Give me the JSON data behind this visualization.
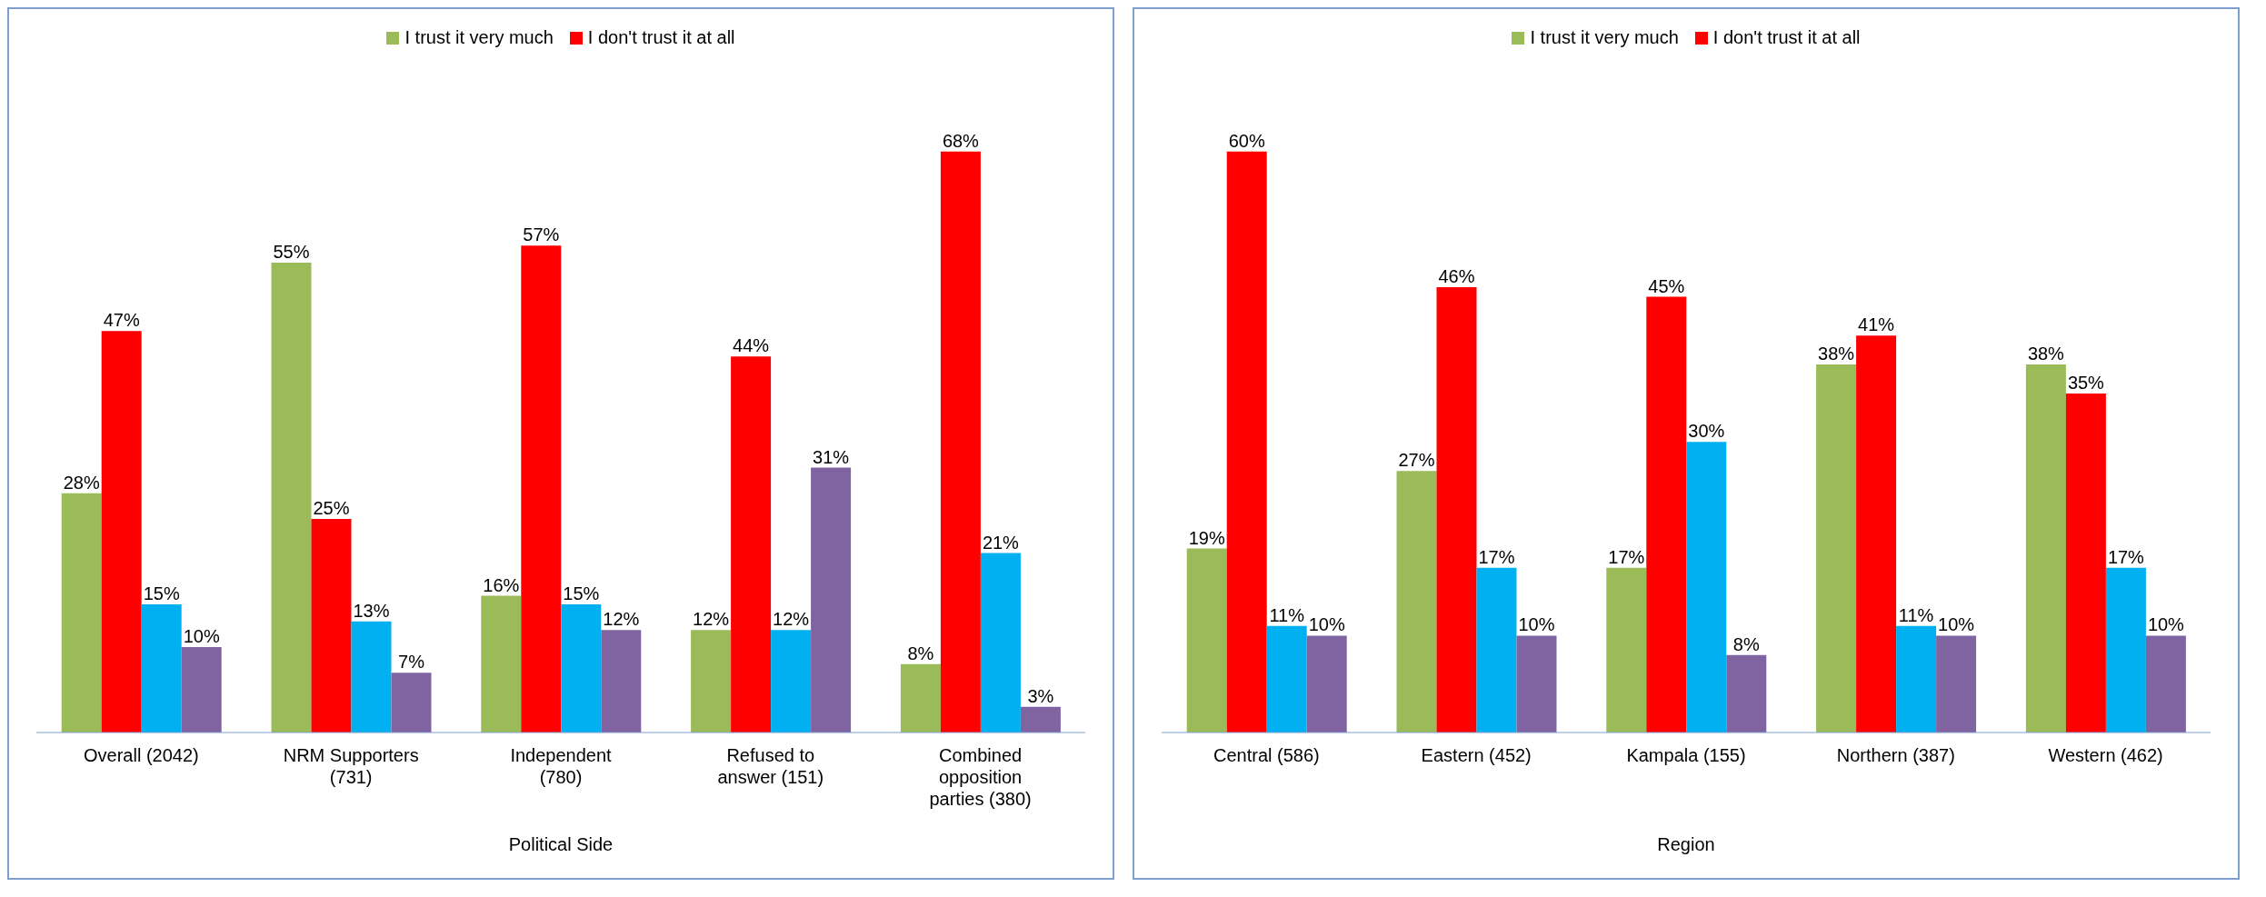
{
  "chart_data": [
    {
      "type": "bar",
      "xlabel": "Political Side",
      "legend": "top",
      "categories": [
        "Overall (2042)",
        "NRM Supporters (731)",
        "Independent (780)",
        "Refused to answer (151)",
        "Combined opposition parties (380)"
      ],
      "series": [
        {
          "name": "I trust it very much",
          "color": "#9bbb59",
          "values": [
            28,
            55,
            16,
            12,
            8
          ],
          "value_labels": [
            "28%",
            "55%",
            "16%",
            "12%",
            "8%"
          ]
        },
        {
          "name": "I don't trust it at all",
          "color": "#ff0000",
          "values": [
            47,
            25,
            57,
            44,
            68
          ],
          "value_labels": [
            "47%",
            "25%",
            "57%",
            "44%",
            "68%"
          ]
        },
        {
          "color": "#00b0f0",
          "values": [
            15,
            13,
            15,
            12,
            21
          ],
          "value_labels": [
            "15%",
            "13%",
            "15%",
            "12%",
            "21%"
          ]
        },
        {
          "color": "#8064a2",
          "values": [
            10,
            7,
            12,
            31,
            3
          ],
          "value_labels": [
            "10%",
            "7%",
            "12%",
            "31%",
            "3%"
          ]
        }
      ]
    },
    {
      "type": "bar",
      "xlabel": "Region",
      "legend": "top",
      "categories": [
        "Central (586)",
        "Eastern (452)",
        "Kampala (155)",
        "Northern (387)",
        "Western (462)"
      ],
      "series": [
        {
          "name": "I trust it very much",
          "color": "#9bbb59",
          "values": [
            19,
            27,
            17,
            38,
            38
          ],
          "value_labels": [
            "19%",
            "27%",
            "17%",
            "38%",
            "38%"
          ]
        },
        {
          "name": "I don't trust it at all",
          "color": "#ff0000",
          "values": [
            60,
            46,
            45,
            41,
            35
          ],
          "value_labels": [
            "60%",
            "46%",
            "45%",
            "41%",
            "35%"
          ]
        },
        {
          "color": "#00b0f0",
          "values": [
            11,
            17,
            30,
            11,
            17
          ],
          "value_labels": [
            "11%",
            "17%",
            "30%",
            "11%",
            "17%"
          ]
        },
        {
          "color": "#8064a2",
          "values": [
            10,
            10,
            8,
            10,
            10
          ],
          "value_labels": [
            "10%",
            "10%",
            "8%",
            "10%",
            "10%"
          ]
        }
      ]
    }
  ]
}
